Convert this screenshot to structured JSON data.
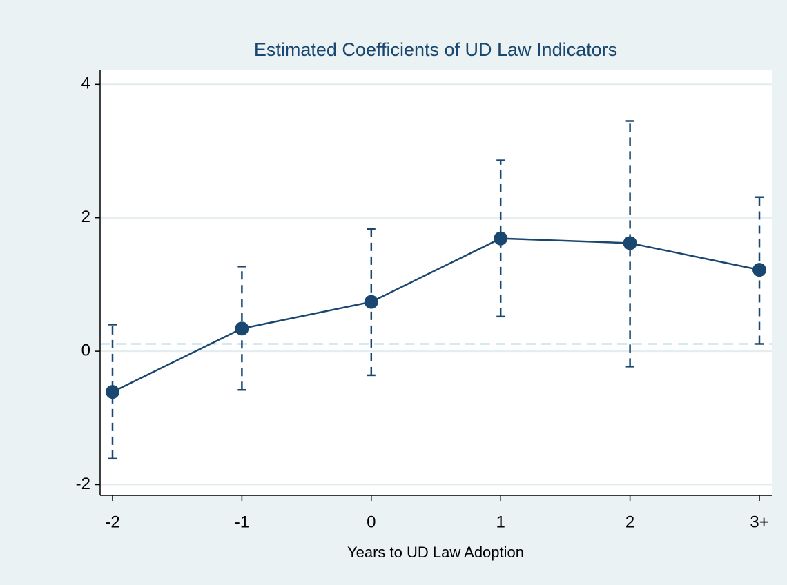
{
  "chart_data": {
    "type": "line",
    "title": "Estimated Coefficients of UD Law Indicators",
    "x_label": "Years to UD Law Adoption",
    "categories": [
      "-2",
      "-1",
      "0",
      "1",
      "2",
      "3+"
    ],
    "series": [
      {
        "color": "#1a476f",
        "values": [
          -0.61,
          0.34,
          0.74,
          1.69,
          1.62,
          1.22
        ],
        "ci_low": [
          -1.61,
          -0.58,
          -0.36,
          0.52,
          -0.23,
          0.11
        ],
        "ci_high": [
          0.4,
          1.27,
          1.83,
          2.86,
          3.45,
          2.31
        ]
      }
    ],
    "reference_line": 0.11,
    "reference_color": "#a8d3e0",
    "ylim": [
      -2.16,
      4.21
    ],
    "yticks": [
      -2,
      0,
      2,
      4
    ],
    "grid": true
  }
}
